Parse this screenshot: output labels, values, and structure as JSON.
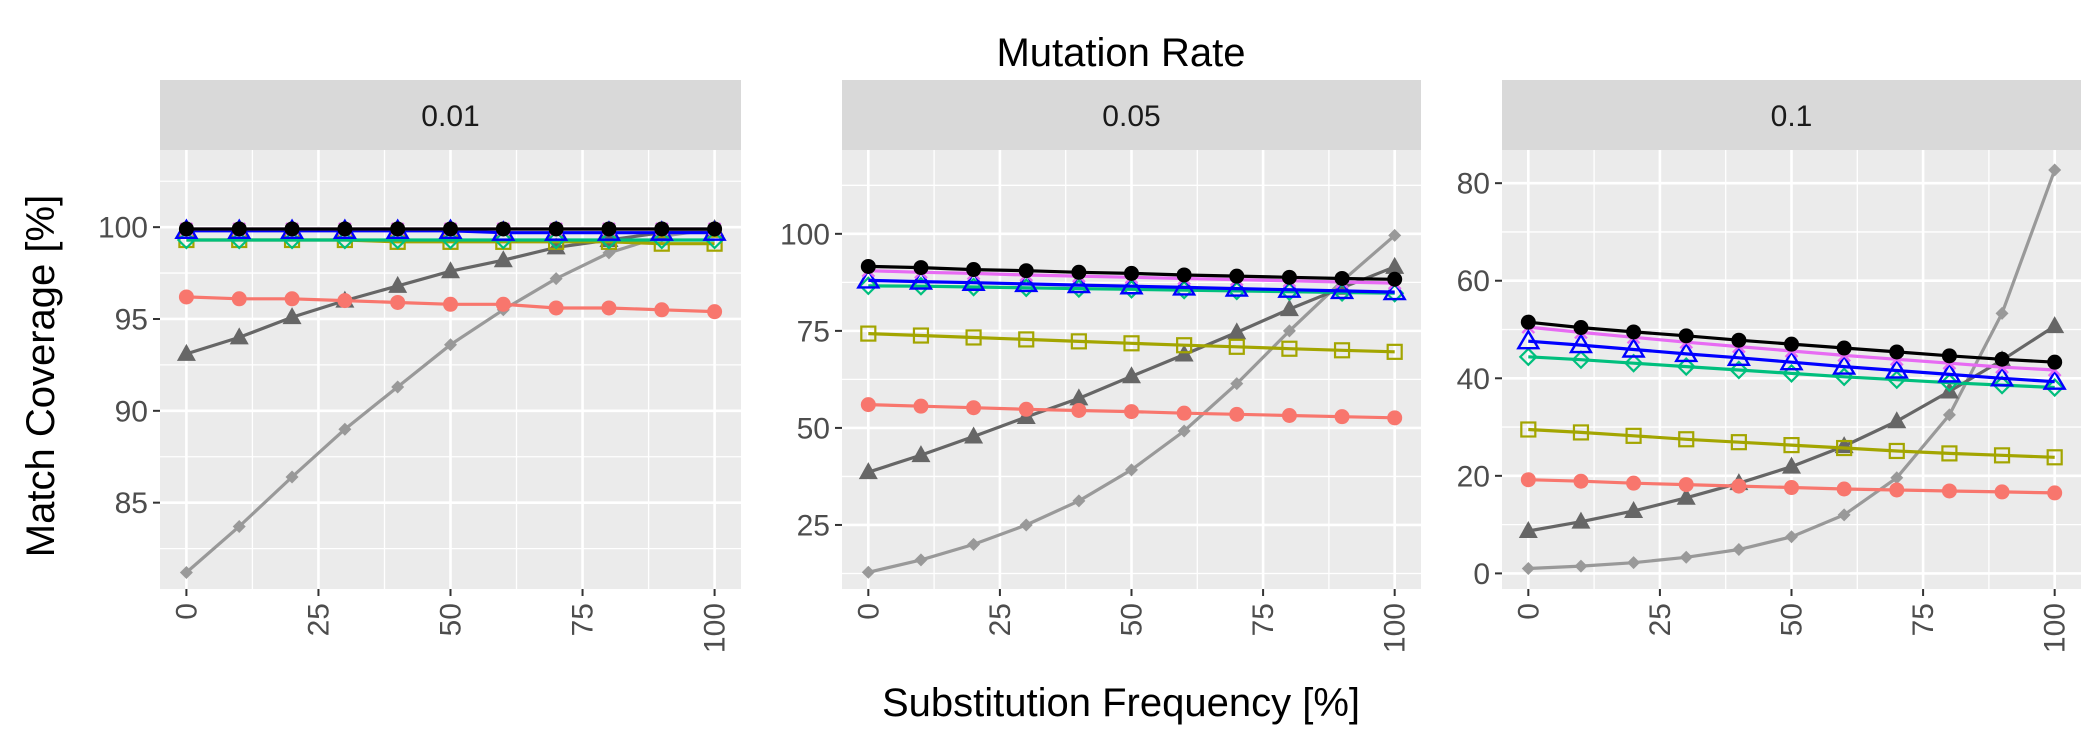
{
  "chart_data": {
    "type": "line",
    "title": "Mutation Rate",
    "xlabel": "Substitution Frequency [%]",
    "ylabel": "Match Coverage [%]",
    "grid": true,
    "legend": "none",
    "x": [
      0,
      10,
      20,
      30,
      40,
      50,
      60,
      70,
      80,
      90,
      100
    ],
    "xticks": [
      0,
      25,
      50,
      75,
      100
    ],
    "xlim": [
      -5,
      105
    ],
    "panels": [
      {
        "label": "0.01",
        "ylim": [
          80.3,
          104.2
        ],
        "yticks": [
          85,
          90,
          95,
          100
        ],
        "series": [
          {
            "marker": "diamond",
            "color": "#999999",
            "values": [
              81.2,
              83.7,
              86.4,
              89.0,
              91.3,
              93.6,
              95.5,
              97.2,
              98.6,
              99.5,
              99.9
            ]
          },
          {
            "marker": "triangle",
            "color": "#666666",
            "values": [
              93.1,
              94.0,
              95.1,
              96.0,
              96.8,
              97.6,
              98.2,
              98.9,
              99.3,
              99.7,
              99.9
            ]
          },
          {
            "marker": "circle",
            "color": "#f8766d",
            "values": [
              96.2,
              96.1,
              96.1,
              96.0,
              95.9,
              95.8,
              95.8,
              95.6,
              95.6,
              95.5,
              95.4
            ]
          },
          {
            "marker": "square-open",
            "color": "#a3a500",
            "values": [
              99.3,
              99.3,
              99.3,
              99.3,
              99.2,
              99.2,
              99.2,
              99.2,
              99.2,
              99.1,
              99.1
            ]
          },
          {
            "marker": "diamond-open",
            "color": "#00bf7d",
            "values": [
              99.3,
              99.3,
              99.3,
              99.3,
              99.3,
              99.3,
              99.3,
              99.3,
              99.3,
              99.3,
              99.3
            ]
          },
          {
            "marker": "triangle-open",
            "color": "#0000ff",
            "values": [
              99.8,
              99.8,
              99.8,
              99.8,
              99.8,
              99.8,
              99.7,
              99.7,
              99.7,
              99.7,
              99.7
            ]
          },
          {
            "marker": "cross",
            "color": "#e76bf3",
            "values": [
              99.9,
              99.9,
              99.9,
              99.9,
              99.9,
              99.9,
              99.9,
              99.9,
              99.9,
              99.9,
              99.9
            ]
          },
          {
            "marker": "circle",
            "color": "#000000",
            "values": [
              99.9,
              99.9,
              99.9,
              99.9,
              99.9,
              99.9,
              99.9,
              99.9,
              99.9,
              99.9,
              99.9
            ]
          }
        ]
      },
      {
        "label": "0.05",
        "ylim": [
          8.5,
          121.6
        ],
        "yticks": [
          25,
          50,
          75,
          100
        ],
        "series": [
          {
            "marker": "diamond",
            "color": "#999999",
            "values": [
              12.8,
              16.0,
              20.0,
              25.0,
              31.2,
              39.2,
              49.2,
              61.4,
              75.0,
              87.8,
              99.6
            ]
          },
          {
            "marker": "triangle",
            "color": "#666666",
            "values": [
              38.6,
              43.0,
              47.8,
              52.8,
              57.6,
              63.3,
              68.9,
              74.6,
              80.6,
              86.1,
              91.5
            ]
          },
          {
            "marker": "circle",
            "color": "#f8766d",
            "values": [
              56.0,
              55.6,
              55.2,
              54.8,
              54.5,
              54.2,
              53.8,
              53.5,
              53.2,
              52.9,
              52.6
            ]
          },
          {
            "marker": "square-open",
            "color": "#a3a500",
            "values": [
              74.3,
              73.8,
              73.3,
              72.8,
              72.3,
              71.8,
              71.3,
              70.9,
              70.4,
              70.0,
              69.6
            ]
          },
          {
            "marker": "diamond-open",
            "color": "#00bf7d",
            "values": [
              86.6,
              86.5,
              86.3,
              86.1,
              85.9,
              85.7,
              85.5,
              85.3,
              85.1,
              84.9,
              84.7
            ]
          },
          {
            "marker": "triangle-open",
            "color": "#0000ff",
            "values": [
              88.0,
              87.7,
              87.4,
              87.1,
              86.8,
              86.5,
              86.2,
              85.9,
              85.6,
              85.3,
              85.0
            ]
          },
          {
            "marker": "cross",
            "color": "#e76bf3",
            "values": [
              90.5,
              90.1,
              89.8,
              89.4,
              89.1,
              88.8,
              88.5,
              88.2,
              87.9,
              87.6,
              87.3
            ]
          },
          {
            "marker": "circle",
            "color": "#000000",
            "values": [
              91.6,
              91.3,
              90.8,
              90.5,
              90.1,
              89.8,
              89.4,
              89.1,
              88.8,
              88.5,
              88.3
            ]
          }
        ]
      },
      {
        "label": "0.1",
        "ylim": [
          -3.2,
          86.8
        ],
        "yticks": [
          0,
          20,
          40,
          60,
          80
        ],
        "series": [
          {
            "marker": "diamond",
            "color": "#999999",
            "values": [
              1.0,
              1.5,
              2.2,
              3.3,
              4.9,
              7.5,
              12.0,
              19.6,
              32.5,
              53.3,
              82.7
            ]
          },
          {
            "marker": "triangle",
            "color": "#666666",
            "values": [
              8.7,
              10.6,
              12.8,
              15.5,
              18.5,
              21.9,
              26.1,
              31.2,
              37.3,
              43.7,
              50.7
            ]
          },
          {
            "marker": "circle",
            "color": "#f8766d",
            "values": [
              19.2,
              18.9,
              18.5,
              18.2,
              17.9,
              17.6,
              17.3,
              17.1,
              16.9,
              16.7,
              16.5
            ]
          },
          {
            "marker": "square-open",
            "color": "#a3a500",
            "values": [
              29.5,
              28.9,
              28.2,
              27.5,
              26.9,
              26.3,
              25.7,
              25.1,
              24.6,
              24.2,
              23.8
            ]
          },
          {
            "marker": "diamond-open",
            "color": "#00bf7d",
            "values": [
              44.4,
              43.8,
              43.1,
              42.4,
              41.7,
              41.0,
              40.3,
              39.7,
              39.1,
              38.6,
              38.1
            ]
          },
          {
            "marker": "triangle-open",
            "color": "#0000ff",
            "values": [
              47.6,
              46.8,
              45.9,
              45.0,
              44.2,
              43.3,
              42.4,
              41.6,
              40.8,
              40.0,
              39.3
            ]
          },
          {
            "marker": "cross",
            "color": "#e76bf3",
            "values": [
              50.5,
              49.4,
              48.4,
              47.4,
              46.5,
              45.6,
              44.7,
              43.9,
              43.1,
              42.3,
              41.7
            ]
          },
          {
            "marker": "circle",
            "color": "#000000",
            "values": [
              51.5,
              50.4,
              49.5,
              48.7,
              47.8,
              47.0,
              46.2,
              45.4,
              44.6,
              43.9,
              43.3
            ]
          }
        ]
      }
    ]
  }
}
